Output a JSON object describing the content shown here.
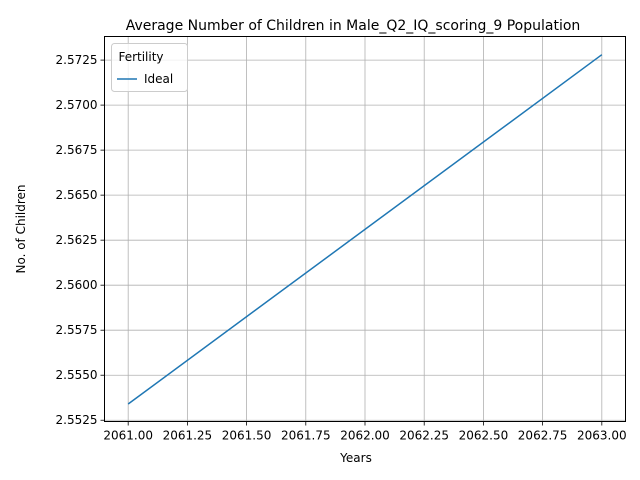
{
  "chart_data": {
    "type": "line",
    "title": "Average Number of Children in Male_Q2_IQ_scoring_9 Population",
    "xlabel": "Years",
    "ylabel": "No. of Children",
    "xlim": [
      2060.9,
      2063.1
    ],
    "ylim": [
      2.55243,
      2.57381
    ],
    "x_ticks": [
      "2061.00",
      "2061.25",
      "2061.50",
      "2061.75",
      "2062.00",
      "2062.25",
      "2062.50",
      "2062.75",
      "2063.00"
    ],
    "y_ticks": [
      "2.5525",
      "2.5550",
      "2.5575",
      "2.5600",
      "2.5625",
      "2.5650",
      "2.5675",
      "2.5700",
      "2.5725"
    ],
    "grid": true,
    "legend": {
      "title": "Fertility",
      "position": "top-left"
    },
    "series": [
      {
        "name": "Ideal",
        "color": "#1f77b4",
        "x": [
          2061,
          2063
        ],
        "y": [
          2.5534,
          2.5728
        ]
      }
    ]
  }
}
